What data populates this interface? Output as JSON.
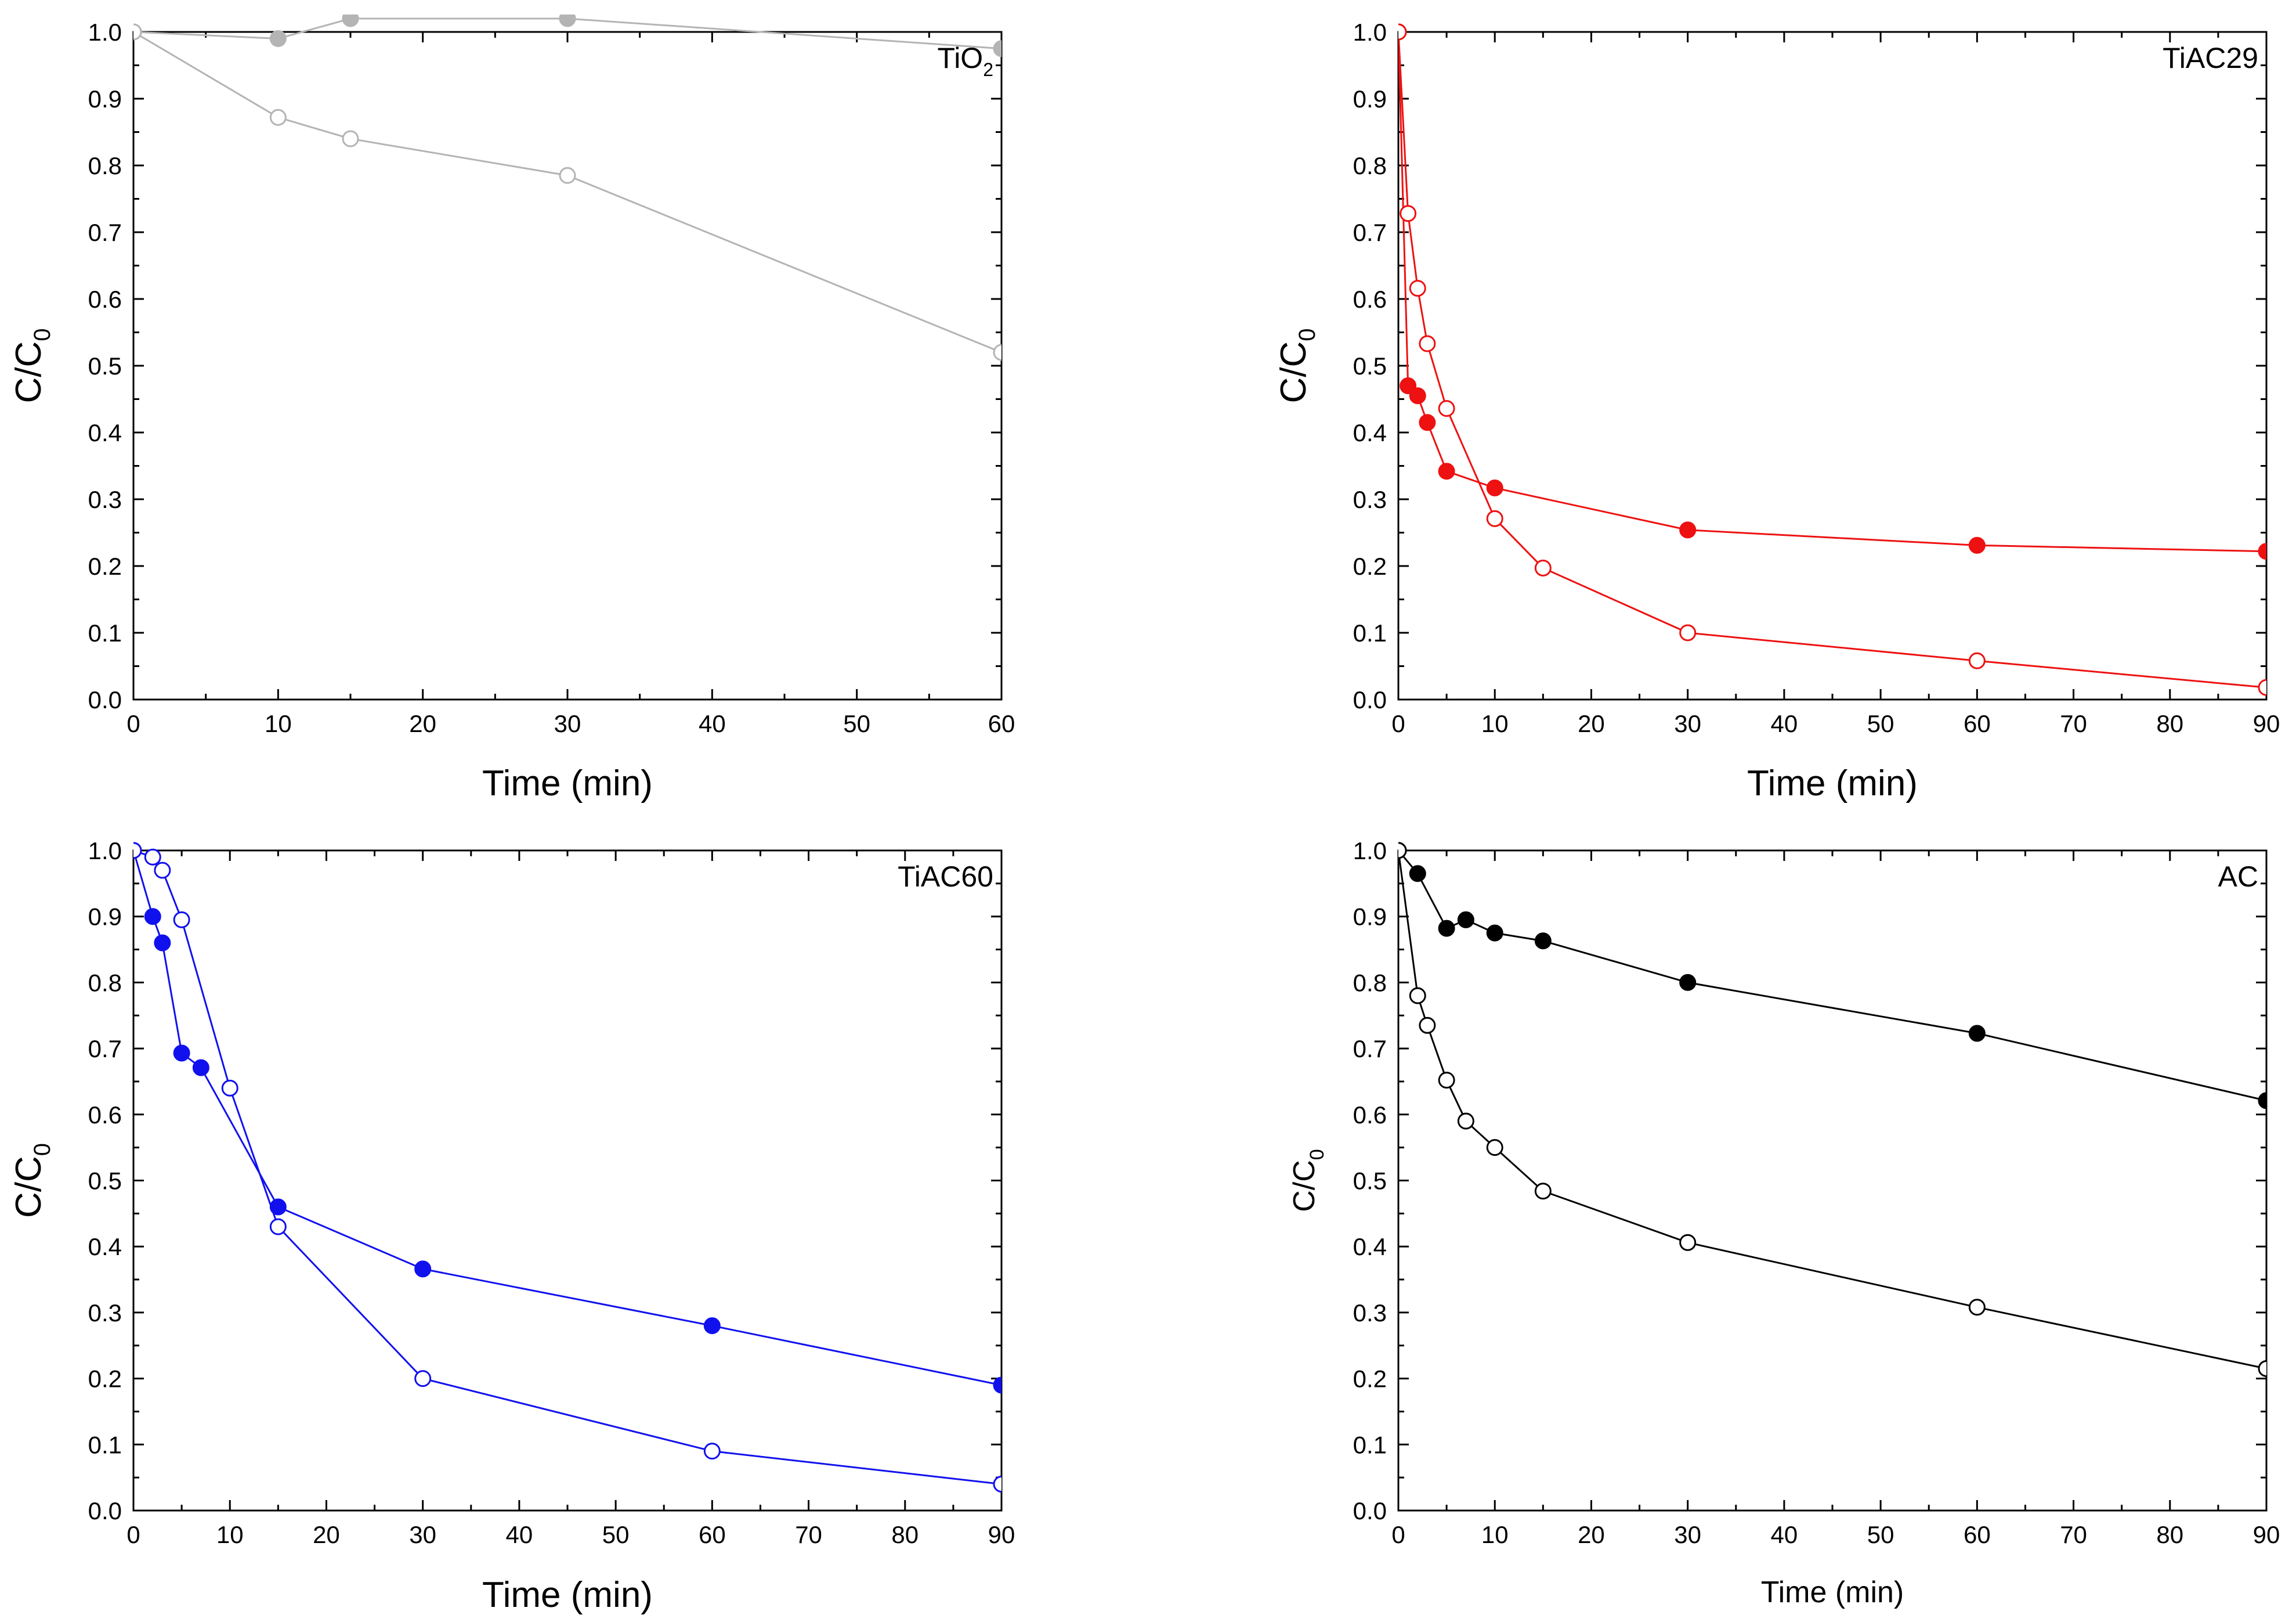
{
  "chart_data": [
    {
      "type": "line",
      "title": "",
      "annotation": "TiO",
      "annotation_sub": "2",
      "xlabel": "Time (min)",
      "ylabel": "C/C",
      "ylabel_sub": "0",
      "xlim": [
        0,
        60
      ],
      "ylim": [
        0,
        1.0
      ],
      "xticks": [
        0,
        10,
        20,
        30,
        40,
        50,
        60
      ],
      "yticks": [
        0.0,
        0.1,
        0.2,
        0.3,
        0.4,
        0.5,
        0.6,
        0.7,
        0.8,
        0.9,
        1.0
      ],
      "color": "#b4b4b4",
      "series": [
        {
          "name": "filled",
          "marker": "filled",
          "x": [
            0,
            10,
            15,
            30,
            60
          ],
          "y": [
            1.0,
            0.99,
            1.02,
            1.02,
            0.975
          ]
        },
        {
          "name": "open",
          "marker": "open",
          "x": [
            0,
            10,
            15,
            30,
            60
          ],
          "y": [
            1.0,
            0.872,
            0.84,
            0.785,
            0.52
          ]
        }
      ]
    },
    {
      "type": "line",
      "title": "",
      "annotation": "TiAC29",
      "annotation_sub": "",
      "xlabel": "Time (min)",
      "ylabel": "C/C",
      "ylabel_sub": "0",
      "xlim": [
        0,
        90
      ],
      "ylim": [
        0,
        1.0
      ],
      "xticks": [
        0,
        10,
        20,
        30,
        40,
        50,
        60,
        70,
        80,
        90
      ],
      "yticks": [
        0.0,
        0.1,
        0.2,
        0.3,
        0.4,
        0.5,
        0.6,
        0.7,
        0.8,
        0.9,
        1.0
      ],
      "color": "#ee1111",
      "series": [
        {
          "name": "filled",
          "marker": "filled",
          "x": [
            0,
            1,
            2,
            3,
            5,
            10,
            30,
            60,
            90
          ],
          "y": [
            1.0,
            0.47,
            0.455,
            0.415,
            0.342,
            0.317,
            0.254,
            0.231,
            0.222
          ]
        },
        {
          "name": "open",
          "marker": "open",
          "x": [
            0,
            1,
            2,
            3,
            5,
            10,
            15,
            30,
            60,
            90
          ],
          "y": [
            1.0,
            0.728,
            0.616,
            0.533,
            0.436,
            0.271,
            0.197,
            0.1,
            0.058,
            0.018
          ]
        }
      ]
    },
    {
      "type": "line",
      "title": "",
      "annotation": "TiAC60",
      "annotation_sub": "",
      "xlabel": "Time (min)",
      "ylabel": "C/C",
      "ylabel_sub": "0",
      "xlim": [
        0,
        90
      ],
      "ylim": [
        0,
        1.0
      ],
      "xticks": [
        0,
        10,
        20,
        30,
        40,
        50,
        60,
        70,
        80,
        90
      ],
      "yticks": [
        0.0,
        0.1,
        0.2,
        0.3,
        0.4,
        0.5,
        0.6,
        0.7,
        0.8,
        0.9,
        1.0
      ],
      "color": "#1111ee",
      "series": [
        {
          "name": "filled",
          "marker": "filled",
          "x": [
            0,
            2,
            3,
            5,
            7,
            15,
            30,
            60,
            90
          ],
          "y": [
            1.0,
            0.9,
            0.86,
            0.693,
            0.671,
            0.46,
            0.366,
            0.28,
            0.19
          ]
        },
        {
          "name": "open",
          "marker": "open",
          "x": [
            0,
            2,
            3,
            5,
            10,
            15,
            30,
            60,
            90
          ],
          "y": [
            1.0,
            0.99,
            0.97,
            0.895,
            0.64,
            0.43,
            0.2,
            0.09,
            0.04
          ]
        }
      ]
    },
    {
      "type": "line",
      "title": "",
      "annotation": "AC",
      "annotation_sub": "",
      "xlabel": "Time (min)",
      "ylabel": "C/C",
      "ylabel_sub": "0",
      "xlim": [
        0,
        90
      ],
      "ylim": [
        0,
        1.0
      ],
      "xticks": [
        0,
        10,
        20,
        30,
        40,
        50,
        60,
        70,
        80,
        90
      ],
      "yticks": [
        0.0,
        0.1,
        0.2,
        0.3,
        0.4,
        0.5,
        0.6,
        0.7,
        0.8,
        0.9,
        1.0
      ],
      "color": "#000000",
      "series": [
        {
          "name": "filled",
          "marker": "filled",
          "x": [
            0,
            2,
            5,
            7,
            10,
            15,
            30,
            60,
            90
          ],
          "y": [
            1.0,
            0.965,
            0.882,
            0.895,
            0.875,
            0.863,
            0.8,
            0.723,
            0.621
          ]
        },
        {
          "name": "open",
          "marker": "open",
          "x": [
            0,
            2,
            3,
            5,
            7,
            10,
            15,
            30,
            60,
            90
          ],
          "y": [
            1.0,
            0.78,
            0.735,
            0.652,
            0.59,
            0.55,
            0.484,
            0.406,
            0.308,
            0.215
          ]
        }
      ]
    }
  ]
}
